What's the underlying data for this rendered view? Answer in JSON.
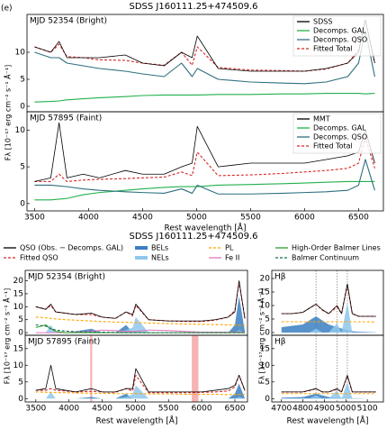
{
  "chart_data": [
    {
      "type": "line",
      "title": "SDSS J160111.25+474509.6",
      "panel_label": "(e)",
      "annotation": "MJD 52354 (Bright)",
      "y_label": "Fλ [10⁻¹⁷ erg cm⁻² s⁻¹ Å⁻¹]",
      "legend_loc": "upper right",
      "xlim": [
        3430,
        6730
      ],
      "ylim": [
        -1,
        17
      ],
      "yticks": [
        0,
        5,
        10
      ],
      "x": [
        3500,
        3650,
        3727,
        3800,
        3950,
        4100,
        4340,
        4500,
        4700,
        4861,
        4959,
        5007,
        5200,
        5500,
        5800,
        6000,
        6200,
        6400,
        6500,
        6563,
        6650
      ],
      "series": [
        {
          "name": "SDSS",
          "color": "#000000",
          "style": "solid",
          "values": [
            11,
            10,
            12,
            9,
            9,
            9,
            9.5,
            8,
            7.5,
            10,
            9,
            13,
            7,
            6.5,
            6.5,
            6.5,
            7,
            8,
            10,
            16,
            8
          ]
        },
        {
          "name": "Decomps. GAL",
          "color": "#22b14c",
          "style": "solid",
          "values": [
            0.8,
            0.9,
            1,
            1.2,
            1.4,
            1.6,
            1.8,
            2,
            2.1,
            2.1,
            2.1,
            2.1,
            2.2,
            2.2,
            2.3,
            2.3,
            2.4,
            2.4,
            2.4,
            2.3,
            2.4
          ]
        },
        {
          "name": "Decomps. QSO",
          "color": "#2f6f7f",
          "style": "solid",
          "values": [
            10,
            9,
            9,
            8,
            7.5,
            7,
            6.5,
            6,
            5.5,
            8,
            5.5,
            7,
            5,
            4.5,
            4.3,
            4.2,
            4.5,
            5.5,
            8,
            14,
            5.5
          ]
        },
        {
          "name": "Fitted Total",
          "color": "#d62728",
          "style": "dashed",
          "values": [
            11,
            10,
            11.5,
            9.2,
            9,
            8.6,
            8.5,
            8,
            7.6,
            10,
            7.6,
            11,
            7.2,
            6.7,
            6.6,
            6.5,
            6.9,
            8,
            10.4,
            16,
            8
          ]
        }
      ]
    },
    {
      "type": "line",
      "annotation": "MJD 57895 (Faint)",
      "x_label": "Rest wavelength [Å]",
      "legend_loc": "upper right",
      "xlim": [
        3430,
        6730
      ],
      "ylim": [
        -1,
        12.5
      ],
      "yticks": [
        0,
        5,
        10
      ],
      "xticks": [
        3500,
        4000,
        4500,
        5000,
        5500,
        6000,
        6500
      ],
      "x": [
        3500,
        3650,
        3727,
        3800,
        3950,
        4100,
        4340,
        4500,
        4700,
        4861,
        4959,
        5007,
        5200,
        5500,
        5800,
        6000,
        6200,
        6400,
        6500,
        6563,
        6650
      ],
      "series": [
        {
          "name": "MMT",
          "color": "#000000",
          "style": "solid",
          "values": [
            3,
            3.5,
            11,
            3.5,
            4,
            3.5,
            4.5,
            4,
            4,
            5,
            5.5,
            10.5,
            5,
            5.5,
            5.5,
            5.5,
            6,
            6.5,
            7,
            10,
            5.5
          ]
        },
        {
          "name": "Decomps. GAL",
          "color": "#22b14c",
          "style": "solid",
          "values": [
            0.5,
            0.5,
            0.6,
            0.7,
            1.2,
            1.5,
            1.8,
            2,
            2.2,
            2.3,
            2.3,
            2.3,
            2.5,
            2.6,
            2.7,
            2.8,
            2.9,
            3,
            3,
            3,
            3
          ]
        },
        {
          "name": "Decomps. QSO",
          "color": "#2f6f7f",
          "style": "solid",
          "values": [
            2.5,
            2.5,
            2.4,
            2.3,
            2,
            1.8,
            1.6,
            1.5,
            1.4,
            2,
            1.4,
            2.5,
            1.3,
            1.3,
            1.4,
            1.5,
            1.6,
            1.8,
            2.5,
            6,
            1.8
          ]
        },
        {
          "name": "Fitted Total",
          "color": "#d62728",
          "style": "dashed",
          "values": [
            3,
            3,
            4,
            3,
            3.2,
            3.3,
            3.4,
            3.5,
            3.6,
            4.3,
            3.8,
            7,
            3.8,
            3.9,
            4.1,
            4.3,
            4.5,
            4.8,
            5.5,
            9,
            4.8
          ]
        }
      ]
    },
    {
      "type": "line",
      "title": "SDSS J160111.25+474509.6",
      "annotation": "MJD 52354 (Bright)",
      "y_label": "Fλ [10⁻¹⁷ erg cm⁻² s⁻¹ Å⁻¹]",
      "legend_loc": "above",
      "xlim": [
        3340,
        6690
      ],
      "ylim": [
        -1,
        24
      ],
      "yticks": [
        0,
        5,
        10,
        15,
        20
      ],
      "x": [
        3500,
        3650,
        3727,
        3800,
        3950,
        4100,
        4340,
        4500,
        4700,
        4861,
        4959,
        5007,
        5200,
        5500,
        5800,
        6000,
        6200,
        6400,
        6500,
        6563,
        6650
      ],
      "series": [
        {
          "name": "QSO (Obs. − Decomps. GAL)",
          "color": "#000000",
          "style": "solid",
          "values": [
            10,
            9,
            11,
            8,
            7.5,
            7,
            7.5,
            6,
            5.5,
            8,
            7,
            11,
            5,
            4.5,
            4.5,
            4.5,
            5,
            6,
            8,
            20,
            5.5
          ]
        },
        {
          "name": "Fitted QSO",
          "color": "#d62728",
          "style": "dashed",
          "values": [
            10,
            9,
            10.5,
            8,
            7.5,
            7,
            7,
            6,
            5.5,
            8,
            6.5,
            10.5,
            5,
            4.5,
            4.3,
            4.3,
            4.8,
            6,
            8.5,
            19.5,
            5.5
          ]
        },
        {
          "name": "BELs",
          "color": "#3a7fc1",
          "style": "fill",
          "values": [
            0,
            0,
            0,
            0,
            0,
            0.5,
            1.5,
            0,
            0,
            3,
            0,
            0,
            0,
            0,
            0,
            0,
            0,
            0,
            3,
            14,
            0.5
          ]
        },
        {
          "name": "NELs",
          "color": "#8fc8ec",
          "style": "fill",
          "values": [
            0,
            0,
            3,
            0,
            0,
            0,
            0.5,
            0,
            0,
            1,
            2,
            6,
            0,
            0,
            0,
            0,
            0,
            0,
            0,
            1,
            0
          ]
        },
        {
          "name": "PL",
          "color": "#ffa500",
          "style": "dashed",
          "values": [
            6,
            5.7,
            5.5,
            5.3,
            5,
            4.8,
            4.5,
            4.3,
            4.1,
            4,
            3.9,
            3.9,
            3.7,
            3.5,
            3.3,
            3.2,
            3.1,
            3,
            2.9,
            2.9,
            2.8
          ]
        },
        {
          "name": "Fe II",
          "color": "#e377c2",
          "style": "solid",
          "values": [
            0,
            0,
            0,
            0,
            0,
            0.3,
            0.5,
            1,
            0.8,
            0.5,
            0.5,
            0.5,
            1,
            0.8,
            0.4,
            0.2,
            0.2,
            0.2,
            0.2,
            0.2,
            0.2
          ]
        },
        {
          "name": "High-Order Balmer Lines",
          "color": "#2ca02c",
          "style": "solid",
          "values": [
            2,
            3,
            1.5,
            0.5,
            0,
            0,
            0,
            0,
            0,
            0,
            0,
            0,
            0,
            0,
            0,
            0,
            0,
            0,
            0,
            0,
            0
          ]
        },
        {
          "name": "Balmer Continuum",
          "color": "#1a6b5a",
          "style": "dashed",
          "values": [
            3,
            2.5,
            1.5,
            1,
            0.6,
            0.4,
            0.3,
            0.2,
            0.1,
            0,
            0,
            0,
            0,
            0,
            0,
            0,
            0,
            0,
            0,
            0,
            0
          ]
        }
      ]
    },
    {
      "type": "line",
      "annotation": "MJD 57895 (Faint)",
      "x_label": "Rest wavelength [Å]",
      "xlim": [
        3340,
        6690
      ],
      "ylim": [
        -1,
        19
      ],
      "yticks": [
        0,
        5,
        10,
        15
      ],
      "xticks": [
        3500,
        4000,
        4500,
        5000,
        5500,
        6000,
        6500
      ],
      "shaded_regions": [
        [
          4320,
          4350
        ],
        [
          5850,
          5950
        ]
      ],
      "x": [
        3500,
        3650,
        3727,
        3800,
        3950,
        4100,
        4340,
        4500,
        4700,
        4861,
        4959,
        5007,
        5200,
        5500,
        5800,
        6000,
        6200,
        6400,
        6500,
        6563,
        6650
      ],
      "series": [
        {
          "color": "#000000",
          "style": "solid",
          "values": [
            2.5,
            3,
            10,
            3,
            2.5,
            2,
            3,
            2,
            2,
            3,
            3,
            9,
            2,
            2,
            2,
            2,
            2.5,
            3,
            4,
            7,
            2.5
          ]
        },
        {
          "color": "#d62728",
          "style": "dashed",
          "values": [
            2.5,
            2.5,
            3,
            2.5,
            2.3,
            2,
            2.2,
            2,
            1.9,
            3,
            2.3,
            7,
            1.8,
            1.8,
            1.8,
            1.9,
            2,
            2.3,
            3.5,
            7,
            2.3
          ]
        },
        {
          "color": "#3a7fc1",
          "style": "fill",
          "values": [
            0,
            0,
            0,
            0,
            0,
            0,
            0.5,
            0,
            0,
            1.5,
            0,
            0,
            0,
            0,
            0,
            0,
            0,
            0,
            1.5,
            4.5,
            0
          ]
        },
        {
          "color": "#8fc8ec",
          "style": "fill",
          "values": [
            0,
            0,
            2,
            0,
            0,
            0,
            0,
            0,
            0,
            0.5,
            1.3,
            4,
            0,
            0,
            0,
            0,
            0,
            0,
            0,
            0.5,
            0
          ]
        },
        {
          "color": "#ffa500",
          "style": "dashed",
          "values": [
            2,
            1.9,
            1.9,
            1.8,
            1.8,
            1.7,
            1.6,
            1.6,
            1.5,
            1.5,
            1.5,
            1.5,
            1.4,
            1.4,
            1.3,
            1.3,
            1.3,
            1.2,
            1.2,
            1.2,
            1.2
          ]
        }
      ]
    },
    {
      "type": "line",
      "annotation": "Hβ",
      "y_label": "Fλ [10⁻¹⁷ erg cm⁻² s⁻¹ Å⁻¹]",
      "xlim": [
        4655,
        5175
      ],
      "ylim": [
        -1,
        23
      ],
      "yticks": [
        0,
        5,
        10,
        15,
        20
      ],
      "reference_lines": [
        4861,
        4959,
        5007
      ],
      "x": [
        4700,
        4750,
        4800,
        4830,
        4861,
        4890,
        4920,
        4959,
        4980,
        5007,
        5030,
        5060,
        5100,
        5140
      ],
      "series": [
        {
          "color": "#000000",
          "style": "solid",
          "values": [
            7,
            7,
            7.5,
            9,
            10.5,
            8.5,
            7,
            10,
            7,
            18,
            7,
            6,
            6,
            6
          ]
        },
        {
          "color": "#d62728",
          "style": "dashed",
          "values": [
            7,
            7,
            7.5,
            9,
            10.5,
            8.3,
            7,
            9.5,
            7,
            17.5,
            7,
            6,
            6,
            6
          ]
        },
        {
          "color": "#3a7fc1",
          "style": "fill",
          "values": [
            2,
            2.5,
            3,
            4.5,
            6,
            4.5,
            3,
            2,
            1.5,
            1,
            0.5,
            0.3,
            0.2,
            0.1
          ]
        },
        {
          "color": "#8fc8ec",
          "style": "fill",
          "values": [
            0,
            0,
            0,
            0,
            1.5,
            0,
            0,
            3.5,
            0,
            11,
            0,
            0,
            0,
            0
          ]
        },
        {
          "color": "#ffa500",
          "style": "dashed",
          "values": [
            4,
            4,
            4,
            4,
            4,
            4,
            4,
            4,
            4,
            4,
            4,
            4,
            4,
            3.9
          ]
        }
      ]
    },
    {
      "type": "line",
      "annotation": "Hβ",
      "x_label": "Rest wavelength [Å]",
      "xlim": [
        4655,
        5175
      ],
      "ylim": [
        -1,
        19
      ],
      "yticks": [
        0,
        5,
        10,
        15
      ],
      "xticks": [
        4700,
        4800,
        4900,
        5000,
        5100
      ],
      "reference_lines": [
        4861,
        4959,
        5007
      ],
      "x": [
        4700,
        4750,
        4800,
        4830,
        4861,
        4890,
        4920,
        4959,
        4980,
        5007,
        5030,
        5060,
        5100,
        5140
      ],
      "series": [
        {
          "color": "#000000",
          "style": "solid",
          "values": [
            2,
            2,
            2,
            2.5,
            3,
            2,
            2,
            3,
            2,
            7,
            2,
            2,
            2,
            2
          ]
        },
        {
          "color": "#d62728",
          "style": "dashed",
          "values": [
            2,
            2,
            2,
            2.4,
            3,
            2,
            2,
            2.8,
            2,
            6.8,
            2,
            2,
            2,
            2
          ]
        },
        {
          "color": "#3a7fc1",
          "style": "fill",
          "values": [
            0.3,
            0.4,
            0.5,
            1,
            1.5,
            1,
            0.5,
            0.3,
            0.2,
            0.2,
            0.1,
            0.1,
            0,
            0
          ]
        },
        {
          "color": "#8fc8ec",
          "style": "fill",
          "values": [
            0,
            0,
            0,
            0,
            1,
            0,
            0,
            2.5,
            0,
            5,
            0,
            0,
            0,
            0
          ]
        },
        {
          "color": "#ffa500",
          "style": "dashed",
          "values": [
            1.5,
            1.5,
            1.5,
            1.5,
            1.5,
            1.5,
            1.5,
            1.5,
            1.5,
            1.5,
            1.5,
            1.5,
            1.5,
            1.5
          ]
        }
      ]
    }
  ]
}
